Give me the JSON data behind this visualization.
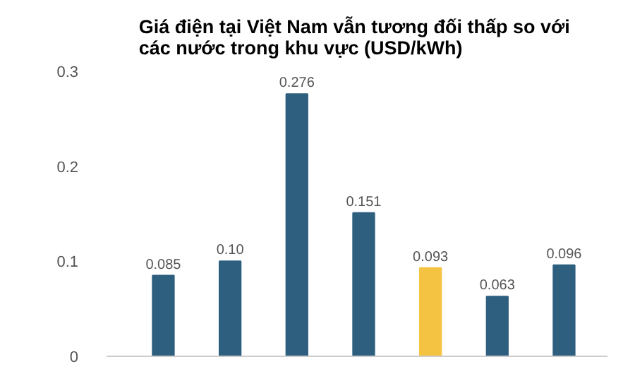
{
  "chart_data": {
    "type": "bar",
    "title": "Giá điện tại Việt Nam vẫn  tương đối thấp so với các nước trong khu vực (USD/kWh)",
    "categories": [
      null,
      null,
      null,
      null,
      null,
      null,
      null
    ],
    "values": [
      0.085,
      0.1,
      0.276,
      0.151,
      0.093,
      0.063,
      0.096
    ],
    "colors": [
      "#2e5f7f",
      "#2e5f7f",
      "#2e5f7f",
      "#2e5f7f",
      "#f5c342",
      "#2e5f7f",
      "#2e5f7f"
    ],
    "value_labels": [
      "0.085",
      "0.10",
      "0.276",
      "0.151",
      "0.093",
      "0.063",
      "0.096"
    ],
    "ylim": [
      0,
      0.3
    ],
    "yticks": [
      {
        "value": 0,
        "label": "0"
      },
      0.1,
      0.2,
      0.3
    ],
    "grid": false
  }
}
